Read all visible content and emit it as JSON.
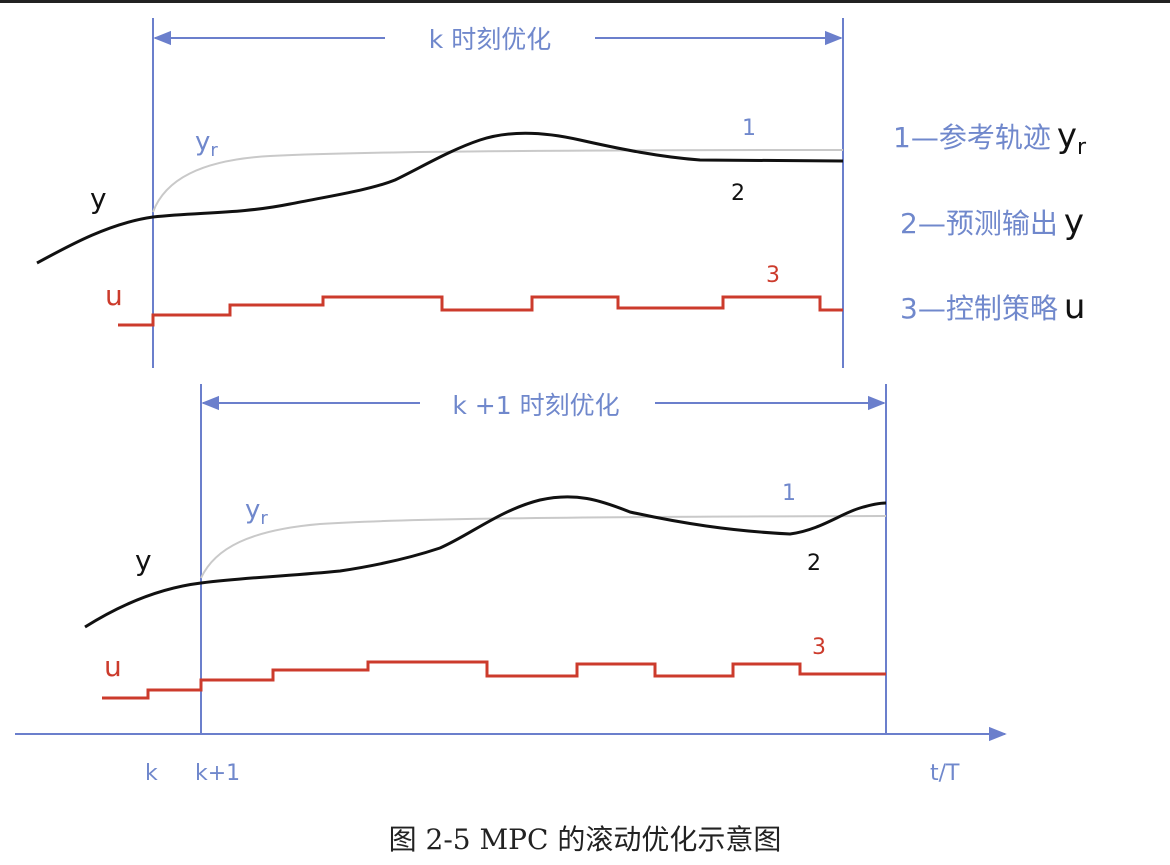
{
  "colors": {
    "axis": "#6b7fcc",
    "label_blue": "#7088cc",
    "reference": "#c9c9c9",
    "output": "#111111",
    "control": "#cc3b2c"
  },
  "top": {
    "horizon_label": "k 时刻优化",
    "yr": "yr",
    "y": "y",
    "u": "u",
    "n1": "1",
    "n2": "2",
    "n3": "3"
  },
  "bottom": {
    "horizon_label": "k +1 时刻优化",
    "yr": "yr",
    "y": "y",
    "u": "u",
    "n1": "1",
    "n2": "2",
    "n3": "3"
  },
  "legend": [
    {
      "text": "1—参考轨迹",
      "symbol": "yr"
    },
    {
      "text": "2—预测输出",
      "symbol": "y"
    },
    {
      "text": "3—控制策略",
      "symbol": "u"
    }
  ],
  "axis": {
    "tick_k": "k",
    "tick_k1": "k+1",
    "xlabel": "t/T"
  },
  "caption": "图 2-5 MPC 的滚动优化示意图"
}
